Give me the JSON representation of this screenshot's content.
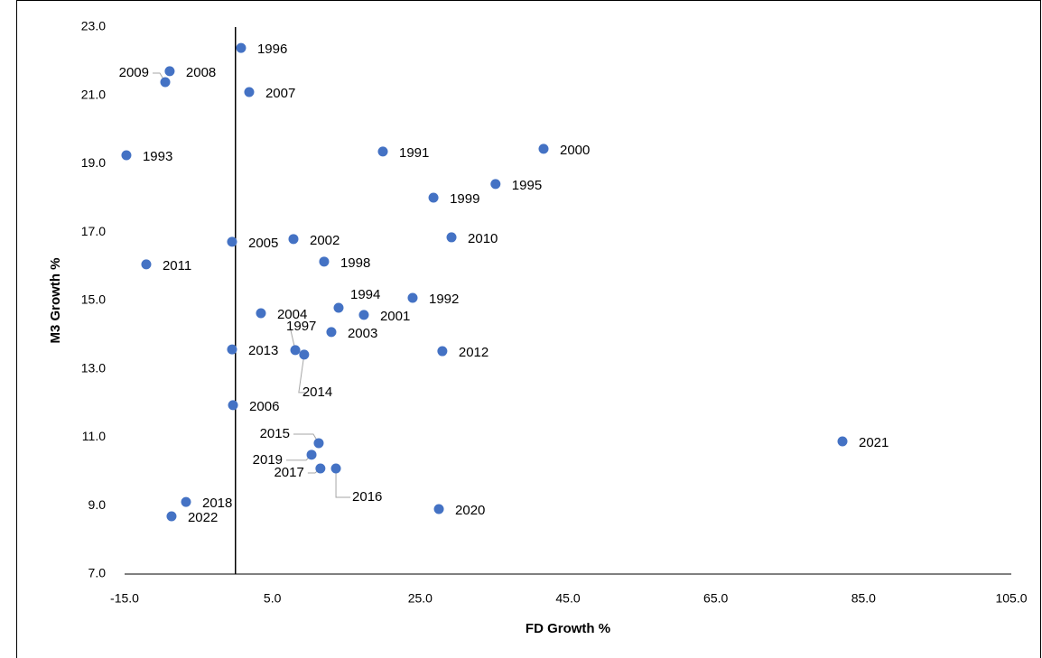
{
  "chart_data": {
    "type": "scatter",
    "xlabel": "FD Growth %",
    "ylabel": "M3  Growth %",
    "color": "#4472c4",
    "labels": [
      "1996",
      "2008",
      "2009",
      "2007",
      "1993",
      "1991",
      "2000",
      "1995",
      "1999",
      "2005",
      "2002",
      "2010",
      "2011",
      "1998",
      "1994",
      "1992",
      "2004",
      "2001",
      "2003",
      "2013",
      "1997",
      "2014",
      "2012",
      "2006",
      "2015",
      "2019",
      "2017",
      "2016",
      "2021",
      "2018",
      "2020",
      "2022"
    ],
    "x": [
      0.76,
      -8.9,
      -9.5,
      1.86,
      -14.76,
      19.95,
      41.7,
      35.2,
      26.8,
      -0.46,
      7.85,
      29.24,
      -12.07,
      12.0,
      13.96,
      23.98,
      3.45,
      17.38,
      12.98,
      -0.46,
      8.1,
      9.3,
      28.0,
      -0.33,
      11.27,
      10.3,
      11.5,
      13.6,
      82.15,
      -6.69,
      27.53,
      -8.65
    ],
    "values": [
      22.39,
      21.71,
      21.39,
      21.1,
      19.25,
      19.36,
      19.44,
      18.41,
      18.01,
      16.72,
      16.8,
      16.85,
      16.06,
      16.14,
      14.79,
      15.08,
      14.63,
      14.58,
      14.08,
      13.57,
      13.55,
      13.42,
      13.52,
      11.94,
      10.83,
      10.49,
      10.09,
      10.09,
      10.88,
      9.11,
      8.9,
      8.69
    ],
    "xlim": [
      -15,
      105
    ],
    "xticks": [
      {
        "value": -15,
        "label": "-15.0"
      },
      {
        "value": 5,
        "label": "5.0"
      },
      {
        "value": 25,
        "label": "25.0"
      },
      {
        "value": 45,
        "label": "45.0"
      },
      {
        "value": 65,
        "label": "65.0"
      },
      {
        "value": 85,
        "label": "85.0"
      },
      {
        "value": 105,
        "label": "105.0"
      }
    ],
    "ylim": [
      7,
      23
    ],
    "yticks": [
      {
        "value": 7,
        "label": "7.0"
      },
      {
        "value": 9,
        "label": "9.0"
      },
      {
        "value": 11,
        "label": "11.0"
      },
      {
        "value": 13,
        "label": "13.0"
      },
      {
        "value": 15,
        "label": "15.0"
      },
      {
        "value": 17,
        "label": "17.0"
      },
      {
        "value": 19,
        "label": "19.0"
      },
      {
        "value": 21,
        "label": "21.0"
      },
      {
        "value": 23,
        "label": "23.0"
      }
    ]
  }
}
